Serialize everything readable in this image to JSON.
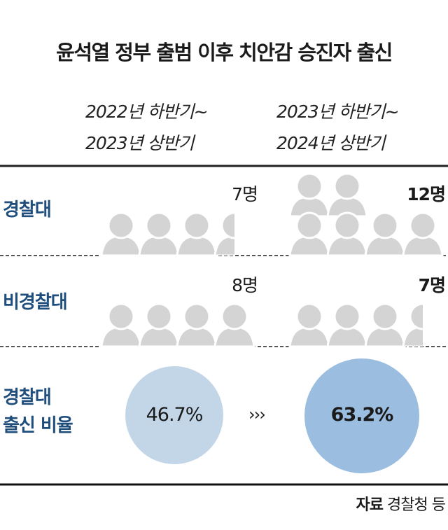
{
  "title": "윤석열 정부 출범 이후 치안감 승진자 출신",
  "periods": [
    {
      "line1": "2022년 하반기~",
      "line2": "2023년 상반기"
    },
    {
      "line1": "2023년 하반기~",
      "line2": "2024년 상반기"
    }
  ],
  "rows": [
    {
      "label": "경찰대",
      "counts": [
        "7명",
        "12명"
      ]
    },
    {
      "label": "비경찰대",
      "counts": [
        "8명",
        "7명"
      ]
    }
  ],
  "ratio": {
    "label_line1": "경찰대",
    "label_line2": "출신 비율",
    "values": [
      "46.7%",
      "63.2%"
    ],
    "arrow": "›››"
  },
  "source": {
    "label": "자료",
    "text": "경찰청 등"
  },
  "colors": {
    "label": "#1f4e7d",
    "person": "#d4d4d4",
    "circle_before": "#c3d6e8",
    "circle_after": "#9bbde0"
  },
  "chart_data": {
    "type": "pictogram",
    "title": "윤석열 정부 출범 이후 치안감 승진자 출신",
    "categories": [
      "2022년 하반기~2023년 상반기",
      "2023년 하반기~2024년 상반기"
    ],
    "series": [
      {
        "name": "경찰대",
        "values": [
          7,
          12
        ]
      },
      {
        "name": "비경찰대",
        "values": [
          8,
          7
        ]
      }
    ],
    "ratio_series": {
      "name": "경찰대 출신 비율",
      "values": [
        46.7,
        63.2
      ],
      "unit": "%"
    },
    "persons_per_icon": 2
  }
}
